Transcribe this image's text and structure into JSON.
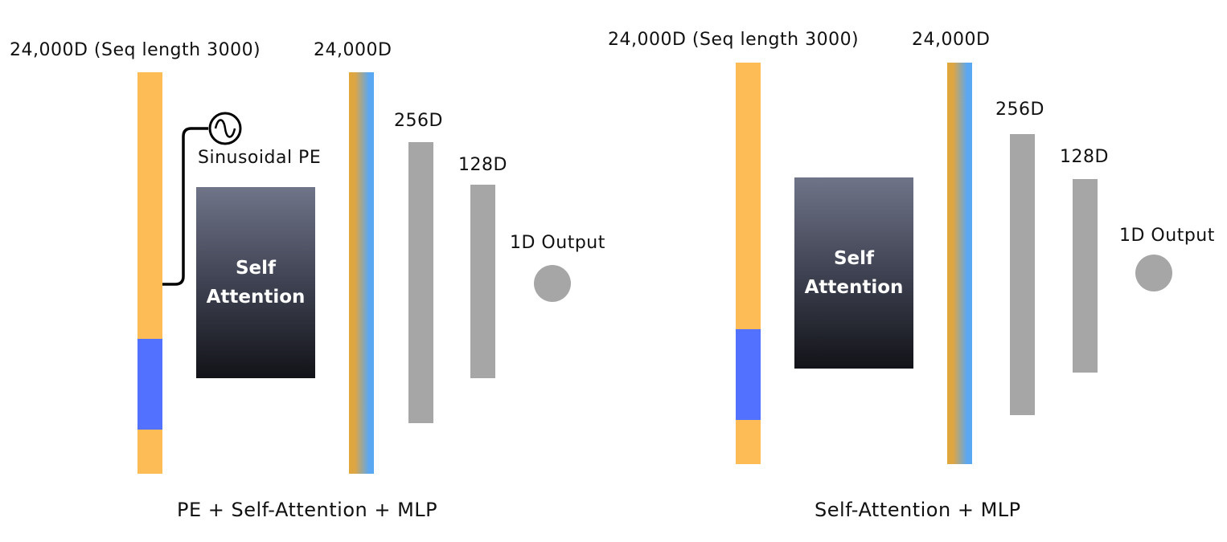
{
  "colors": {
    "sequence": "#fdbc56",
    "segment": "#5271ff",
    "embedding_left": "#e0a73a",
    "embedding_right": "#5aa7f2",
    "mlp": "#a6a6a6",
    "output": "#a6a6a6",
    "attention_top": "#6f7488",
    "attention_bottom": "#121318"
  },
  "diagrams": [
    {
      "input_label": "24,000D (Seq length 3000)",
      "embedding_label": "24,000D",
      "pe_label": "Sinusoidal PE",
      "pe_icon": "sine-wave-icon",
      "attention_label": "Self\nAttention",
      "layer1_label": "256D",
      "layer2_label": "128D",
      "output_label": "1D Output",
      "caption": "PE + Self-Attention + MLP"
    },
    {
      "input_label": "24,000D (Seq length 3000)",
      "embedding_label": "24,000D",
      "attention_label": "Self\nAttention",
      "layer1_label": "256D",
      "layer2_label": "128D",
      "output_label": "1D Output",
      "caption": "Self-Attention + MLP"
    }
  ]
}
